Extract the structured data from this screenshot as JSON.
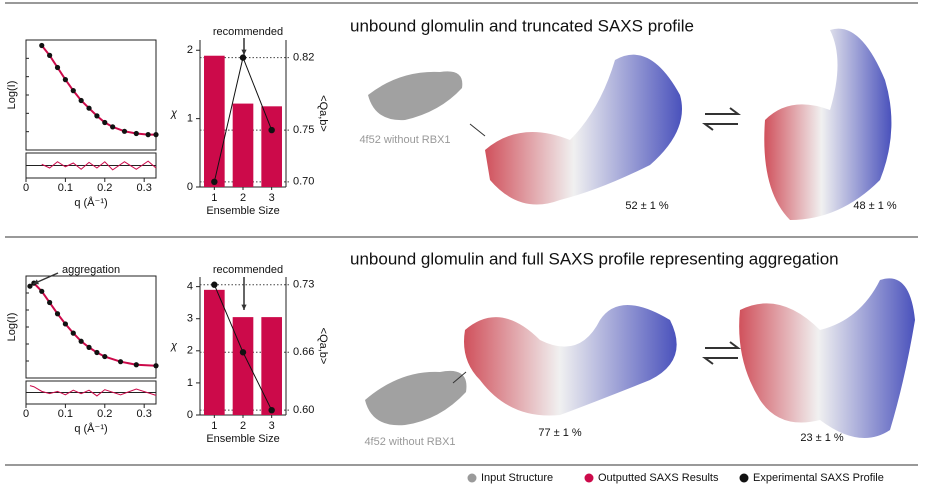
{
  "panels": [
    {
      "title": "unbound glomulin and truncated SAXS profile",
      "input_label": "4f52 without RBX1",
      "states": [
        "52 ± 1 %",
        "48 ± 1 %"
      ]
    },
    {
      "title": "unbound glomulin and full SAXS profile representing aggregation",
      "input_label": "4f52 without RBX1",
      "states": [
        "77 ± 1 %",
        "23 ± 1 %"
      ]
    }
  ],
  "legend": [
    {
      "label": "Input Structure",
      "color": "#9a9a9a"
    },
    {
      "label": "Outputted SAXS Results",
      "color": "#cc0a4a"
    },
    {
      "label": "Experimental SAXS Profile",
      "color": "#111111"
    }
  ],
  "chart_data": [
    {
      "type": "line",
      "xlabel": "q (Å⁻¹)",
      "ylabel": "Log(I)",
      "x": [
        0.04,
        0.06,
        0.08,
        0.1,
        0.12,
        0.14,
        0.16,
        0.18,
        0.2,
        0.22,
        0.25,
        0.28,
        0.31,
        0.33
      ],
      "xlim": [
        0,
        0.33
      ],
      "xticks": [
        0,
        0.1,
        0.2,
        0.3
      ],
      "ylim": [
        0,
        1
      ],
      "series": [
        {
          "color": "#111111",
          "values": [
            0.95,
            0.86,
            0.75,
            0.64,
            0.54,
            0.45,
            0.38,
            0.31,
            0.25,
            0.21,
            0.17,
            0.15,
            0.14,
            0.14
          ]
        },
        {
          "color": "#cc0a4a",
          "values": [
            0.95,
            0.86,
            0.75,
            0.64,
            0.54,
            0.45,
            0.38,
            0.31,
            0.25,
            0.21,
            0.17,
            0.15,
            0.14,
            0.14
          ]
        }
      ],
      "residual_ylim": [
        -1,
        1
      ],
      "residuals": {
        "color": "#cc0a4a",
        "values": [
          0.1,
          -0.2,
          0.3,
          -0.1,
          0.2,
          -0.3,
          0.25,
          -0.2,
          0.3,
          -0.35,
          0.3,
          -0.3,
          0.35,
          -0.2
        ]
      }
    },
    {
      "type": "bar",
      "ylabel": "χ",
      "y2label": "<Qa,b>",
      "xlabel": "Ensemble Size",
      "annotation": "recommended",
      "categories": [
        "1",
        "2",
        "3"
      ],
      "ylim": [
        0,
        2.15
      ],
      "yticks": [
        0,
        1,
        2
      ],
      "y2lim": [
        0.695,
        0.837
      ],
      "y2ticks": [
        {
          "value": 0.7,
          "label": "0.70"
        },
        0.75,
        0.82
      ],
      "series": [
        {
          "color": "#cc0a4a",
          "values": [
            1.92,
            1.22,
            1.18
          ]
        },
        {
          "color": "#111111",
          "values": [
            0.7,
            0.82,
            0.75
          ],
          "axis": "y2"
        }
      ]
    },
    {
      "type": "line",
      "xlabel": "q (Å⁻¹)",
      "ylabel": "Log(I)",
      "annotation": "aggregation",
      "x": [
        0.01,
        0.02,
        0.04,
        0.06,
        0.08,
        0.1,
        0.12,
        0.14,
        0.16,
        0.18,
        0.2,
        0.24,
        0.28,
        0.33
      ],
      "xlim": [
        0,
        0.33
      ],
      "xticks": [
        0,
        0.1,
        0.2,
        0.3
      ],
      "ylim": [
        0,
        1
      ],
      "series": [
        {
          "color": "#111111",
          "values": [
            0.9,
            0.93,
            0.85,
            0.74,
            0.63,
            0.53,
            0.44,
            0.36,
            0.3,
            0.25,
            0.21,
            0.16,
            0.13,
            0.12
          ]
        },
        {
          "color": "#cc0a4a",
          "values": [
            0.9,
            0.93,
            0.85,
            0.74,
            0.63,
            0.53,
            0.44,
            0.36,
            0.3,
            0.25,
            0.21,
            0.16,
            0.13,
            0.12
          ]
        }
      ],
      "residual_ylim": [
        -1,
        1
      ],
      "residuals": {
        "color": "#cc0a4a",
        "values": [
          0.6,
          0.5,
          0.1,
          -0.1,
          0.1,
          -0.2,
          0.2,
          -0.1,
          0.2,
          -0.3,
          0.25,
          -0.2,
          0.3,
          -0.25
        ]
      }
    },
    {
      "type": "bar",
      "ylabel": "χ",
      "y2label": "<Qa,b>",
      "xlabel": "Ensemble Size",
      "annotation": "recommended",
      "categories": [
        "1",
        "2",
        "3"
      ],
      "ylim": [
        0,
        4.3
      ],
      "yticks": [
        0,
        1,
        2,
        3,
        4
      ],
      "y2lim": [
        0.595,
        0.738
      ],
      "y2ticks": [
        {
          "value": 0.6,
          "label": "0.60"
        },
        0.66,
        0.73
      ],
      "series": [
        {
          "color": "#cc0a4a",
          "values": [
            3.9,
            3.05,
            3.05
          ]
        },
        {
          "color": "#111111",
          "values": [
            0.73,
            0.66,
            0.6
          ],
          "axis": "y2"
        }
      ]
    }
  ]
}
